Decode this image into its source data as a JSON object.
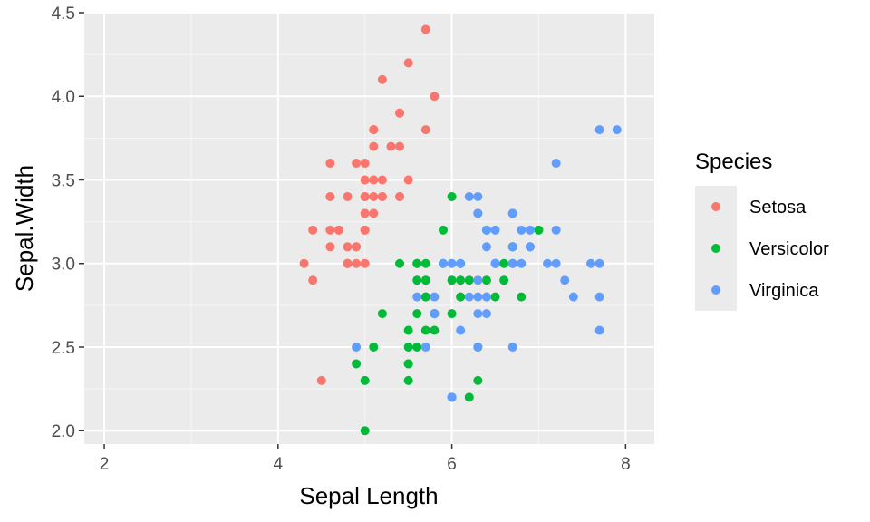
{
  "chart_data": {
    "type": "scatter",
    "title": "",
    "xlabel": "Sepal Length",
    "ylabel": "Sepal.Width",
    "xlim": [
      1.77,
      8.33
    ],
    "ylim": [
      1.92,
      4.5
    ],
    "x_ticks": [
      2,
      4,
      6,
      8
    ],
    "x_tick_labels": [
      "2",
      "4",
      "6",
      "8"
    ],
    "y_ticks": [
      2.0,
      2.5,
      3.0,
      3.5,
      4.0,
      4.5
    ],
    "y_tick_labels": [
      "2.0",
      "2.5",
      "3.0",
      "3.5",
      "4.0",
      "4.5"
    ],
    "grid": true,
    "legend": {
      "title": "Species",
      "position": "right"
    },
    "series": [
      {
        "name": "Setosa",
        "color": "#F8766D",
        "points": [
          [
            4.3,
            3.0
          ],
          [
            4.4,
            3.2
          ],
          [
            4.4,
            2.9
          ],
          [
            4.5,
            2.3
          ],
          [
            4.6,
            3.6
          ],
          [
            4.6,
            3.4
          ],
          [
            4.6,
            3.2
          ],
          [
            4.6,
            3.1
          ],
          [
            4.7,
            3.2
          ],
          [
            4.7,
            3.2
          ],
          [
            4.8,
            3.4
          ],
          [
            4.8,
            3.1
          ],
          [
            4.8,
            3.0
          ],
          [
            4.8,
            3.0
          ],
          [
            4.9,
            3.6
          ],
          [
            4.9,
            3.1
          ],
          [
            4.9,
            3.0
          ],
          [
            4.9,
            3.1
          ],
          [
            5.0,
            3.6
          ],
          [
            5.0,
            3.4
          ],
          [
            5.0,
            3.5
          ],
          [
            5.0,
            3.2
          ],
          [
            5.0,
            3.3
          ],
          [
            5.0,
            3.4
          ],
          [
            5.0,
            3.0
          ],
          [
            5.1,
            3.5
          ],
          [
            5.1,
            3.8
          ],
          [
            5.1,
            3.8
          ],
          [
            5.1,
            3.7
          ],
          [
            5.1,
            3.3
          ],
          [
            5.1,
            3.4
          ],
          [
            5.1,
            3.5
          ],
          [
            5.1,
            3.8
          ],
          [
            5.2,
            3.5
          ],
          [
            5.2,
            3.4
          ],
          [
            5.2,
            4.1
          ],
          [
            5.3,
            3.7
          ],
          [
            5.4,
            3.9
          ],
          [
            5.4,
            3.7
          ],
          [
            5.4,
            3.9
          ],
          [
            5.4,
            3.4
          ],
          [
            5.4,
            3.4
          ],
          [
            5.5,
            4.2
          ],
          [
            5.5,
            3.5
          ],
          [
            5.7,
            4.4
          ],
          [
            5.7,
            3.8
          ],
          [
            5.8,
            4.0
          ],
          [
            5.2,
            3.4
          ],
          [
            5.0,
            3.2
          ],
          [
            4.8,
            3.0
          ]
        ]
      },
      {
        "name": "Versicolor",
        "color": "#00BA38",
        "points": [
          [
            4.9,
            2.4
          ],
          [
            5.0,
            2.0
          ],
          [
            5.0,
            2.3
          ],
          [
            5.1,
            2.5
          ],
          [
            5.2,
            2.7
          ],
          [
            5.4,
            3.0
          ],
          [
            5.5,
            2.3
          ],
          [
            5.5,
            2.4
          ],
          [
            5.5,
            2.4
          ],
          [
            5.5,
            2.5
          ],
          [
            5.5,
            2.6
          ],
          [
            5.6,
            2.9
          ],
          [
            5.6,
            3.0
          ],
          [
            5.6,
            2.5
          ],
          [
            5.6,
            2.7
          ],
          [
            5.6,
            3.0
          ],
          [
            5.7,
            2.8
          ],
          [
            5.7,
            2.6
          ],
          [
            5.7,
            3.0
          ],
          [
            5.7,
            2.9
          ],
          [
            5.7,
            2.8
          ],
          [
            5.8,
            2.7
          ],
          [
            5.8,
            2.6
          ],
          [
            5.8,
            2.7
          ],
          [
            5.9,
            3.0
          ],
          [
            5.9,
            3.2
          ],
          [
            6.0,
            2.2
          ],
          [
            6.0,
            2.9
          ],
          [
            6.0,
            2.7
          ],
          [
            6.0,
            3.4
          ],
          [
            6.1,
            2.9
          ],
          [
            6.1,
            2.8
          ],
          [
            6.1,
            2.8
          ],
          [
            6.1,
            3.0
          ],
          [
            6.2,
            2.2
          ],
          [
            6.2,
            2.9
          ],
          [
            6.3,
            3.3
          ],
          [
            6.3,
            2.5
          ],
          [
            6.3,
            2.3
          ],
          [
            6.4,
            3.2
          ],
          [
            6.4,
            2.9
          ],
          [
            6.5,
            2.8
          ],
          [
            6.6,
            2.9
          ],
          [
            6.6,
            3.0
          ],
          [
            6.7,
            3.1
          ],
          [
            6.7,
            3.0
          ],
          [
            6.7,
            3.1
          ],
          [
            6.8,
            2.8
          ],
          [
            6.9,
            3.1
          ],
          [
            7.0,
            3.2
          ]
        ]
      },
      {
        "name": "Virginica",
        "color": "#619CFF",
        "points": [
          [
            4.9,
            2.5
          ],
          [
            5.6,
            2.8
          ],
          [
            5.7,
            2.5
          ],
          [
            5.8,
            2.7
          ],
          [
            5.8,
            2.8
          ],
          [
            5.8,
            2.7
          ],
          [
            5.9,
            3.0
          ],
          [
            6.0,
            2.2
          ],
          [
            6.0,
            3.0
          ],
          [
            6.1,
            3.0
          ],
          [
            6.1,
            2.6
          ],
          [
            6.2,
            2.8
          ],
          [
            6.2,
            3.4
          ],
          [
            6.3,
            3.3
          ],
          [
            6.3,
            2.7
          ],
          [
            6.3,
            2.9
          ],
          [
            6.3,
            2.5
          ],
          [
            6.3,
            2.8
          ],
          [
            6.3,
            3.4
          ],
          [
            6.4,
            2.7
          ],
          [
            6.4,
            3.2
          ],
          [
            6.4,
            2.8
          ],
          [
            6.4,
            2.8
          ],
          [
            6.4,
            3.1
          ],
          [
            6.5,
            3.0
          ],
          [
            6.5,
            3.2
          ],
          [
            6.5,
            3.0
          ],
          [
            6.5,
            3.0
          ],
          [
            6.7,
            2.5
          ],
          [
            6.7,
            3.3
          ],
          [
            6.7,
            3.1
          ],
          [
            6.7,
            3.0
          ],
          [
            6.7,
            3.3
          ],
          [
            6.8,
            3.0
          ],
          [
            6.8,
            3.2
          ],
          [
            6.9,
            3.2
          ],
          [
            6.9,
            3.1
          ],
          [
            6.9,
            3.1
          ],
          [
            7.1,
            3.0
          ],
          [
            7.2,
            3.6
          ],
          [
            7.2,
            3.2
          ],
          [
            7.2,
            3.0
          ],
          [
            7.3,
            2.9
          ],
          [
            7.4,
            2.8
          ],
          [
            7.6,
            3.0
          ],
          [
            7.7,
            3.8
          ],
          [
            7.7,
            2.6
          ],
          [
            7.7,
            2.8
          ],
          [
            7.7,
            3.0
          ],
          [
            7.9,
            3.8
          ]
        ]
      }
    ]
  }
}
